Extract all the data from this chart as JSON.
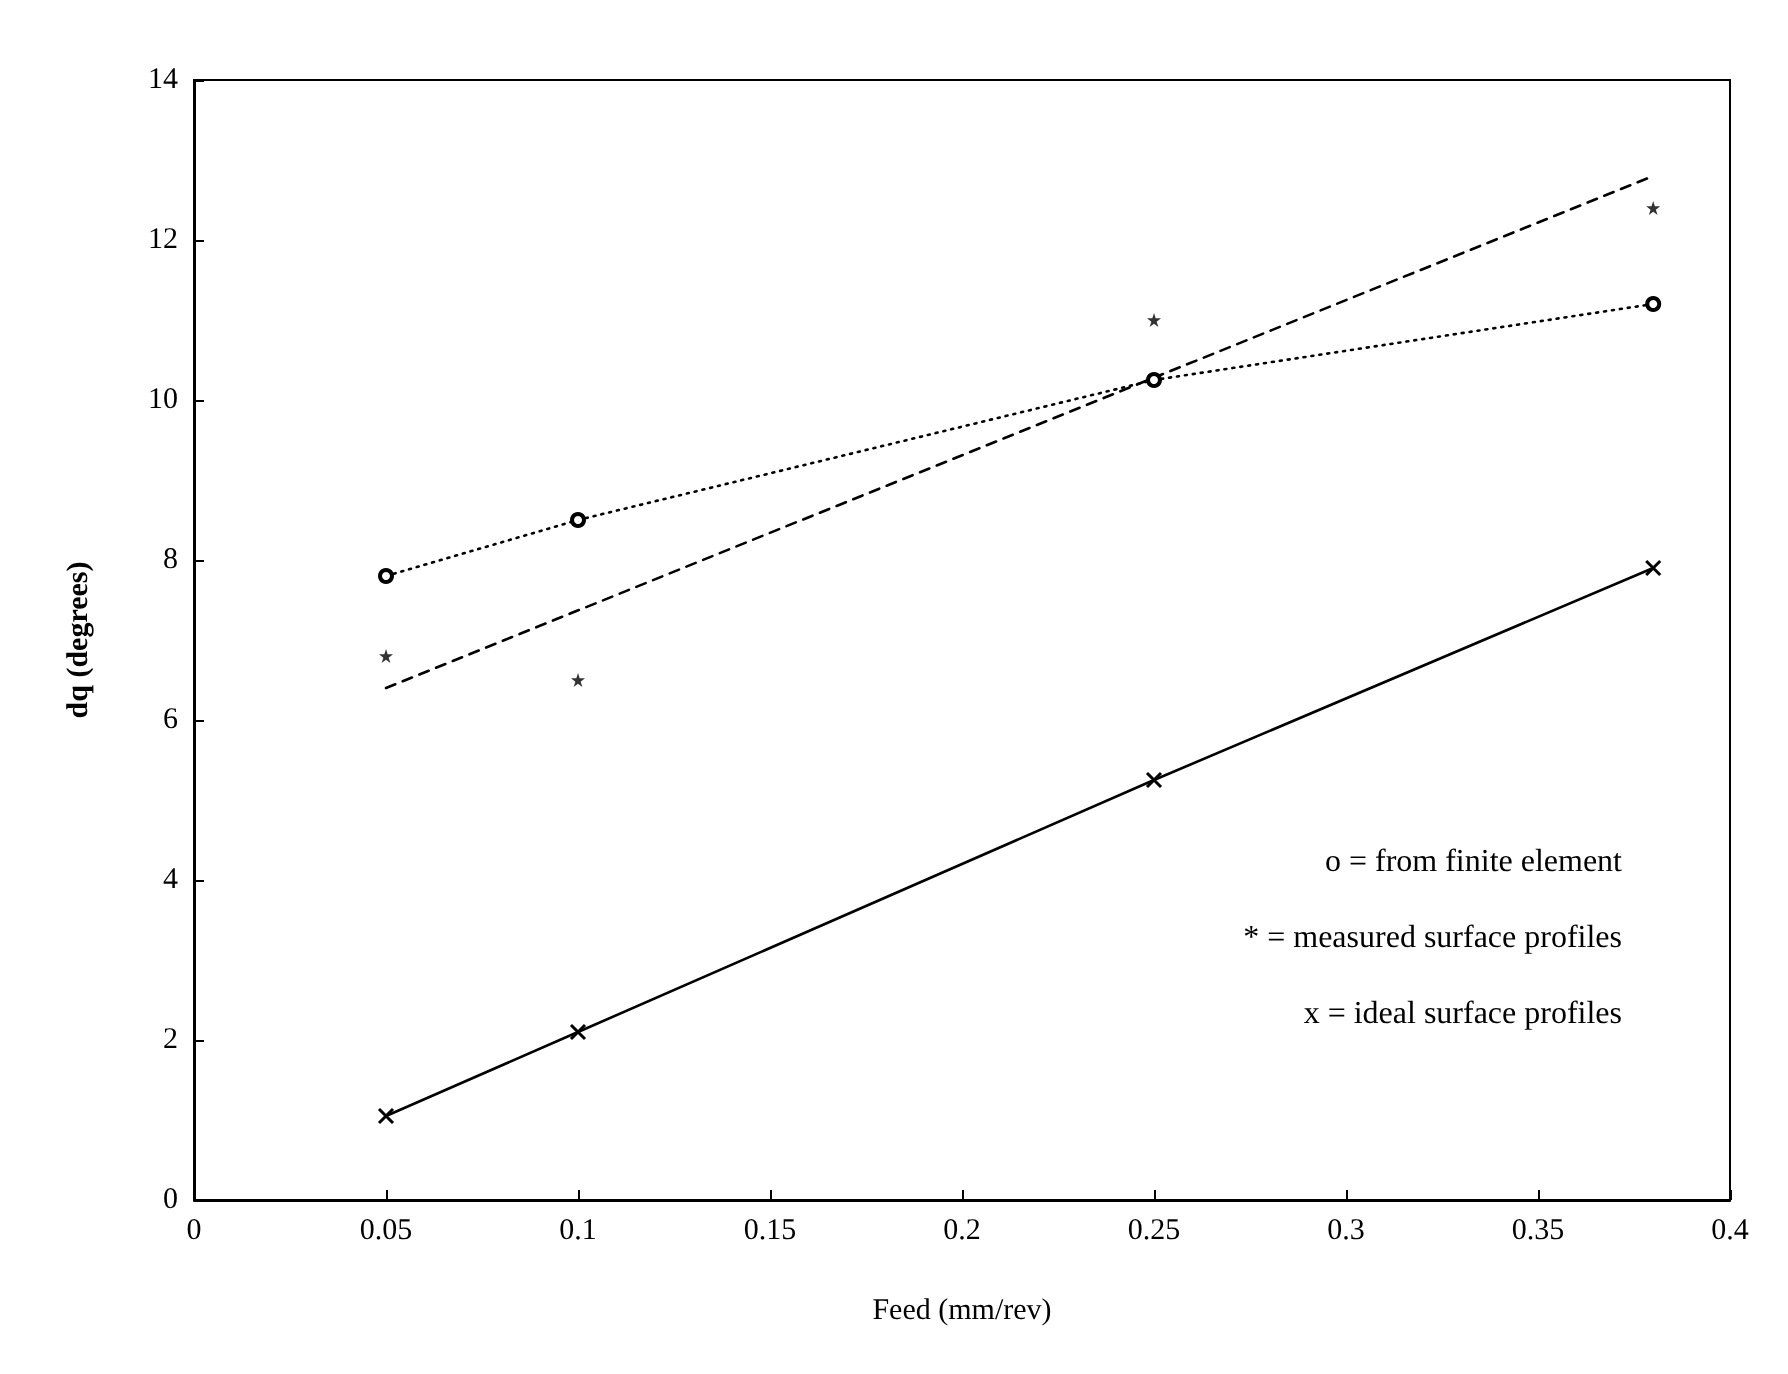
{
  "chart_data": {
    "type": "line",
    "xlabel": "Feed (mm/rev)",
    "ylabel": "dq (degrees)",
    "x": [
      0.05,
      0.1,
      0.25,
      0.38
    ],
    "series": [
      {
        "color": "#000000",
        "values": [
          7.8,
          8.5,
          10.25,
          11.2
        ],
        "marker": "circle",
        "line_style": "dotted"
      },
      {
        "type": "scatter",
        "color": "#000000",
        "values": [
          6.8,
          6.5,
          11.0,
          12.4
        ],
        "marker": "star"
      },
      {
        "color": "#000000",
        "x": [
          0.05,
          0.38
        ],
        "values": [
          6.4,
          12.8
        ],
        "marker": "none",
        "line_style": "dashed"
      },
      {
        "color": "#000000",
        "values": [
          1.05,
          2.1,
          5.25,
          7.9
        ],
        "marker": "cross",
        "line_style": "solid"
      }
    ],
    "xlim": [
      0,
      0.4
    ],
    "xticks": [
      0,
      0.05,
      0.1,
      0.15,
      0.2,
      0.25,
      0.3,
      0.35,
      0.4
    ],
    "ylim": [
      0,
      14
    ],
    "yticks": [
      0,
      2,
      4,
      6,
      8,
      10,
      12,
      14
    ],
    "grid": false,
    "annotations": [
      "o = from finite element",
      "* = measured surface profiles",
      "x = ideal surface profiles"
    ]
  }
}
